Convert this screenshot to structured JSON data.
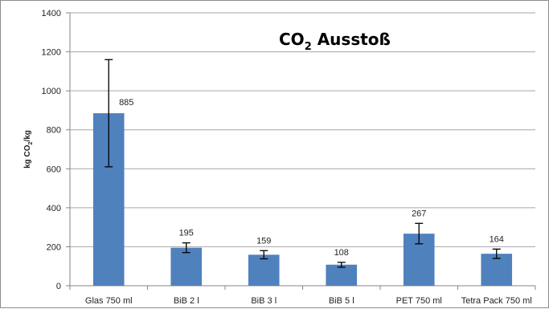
{
  "chart_data": {
    "type": "bar",
    "title": "CO",
    "title_subscript": "2",
    "title_rest": " Ausstoß",
    "ylabel": "kg CO",
    "ylabel_subscript": "2",
    "ylabel_rest": "/kg",
    "xlabel": "",
    "ylim": [
      0,
      1400
    ],
    "yticks": [
      0,
      200,
      400,
      600,
      800,
      1000,
      1200,
      1400
    ],
    "grid": true,
    "legend": "none",
    "categories": [
      "Glas 750 ml",
      "BiB 2 l",
      "BiB 3 l",
      "BiB 5 l",
      "PET 750 ml",
      "Tetra Pack 750 ml"
    ],
    "values": [
      885,
      195,
      159,
      108,
      267,
      164
    ],
    "data_labels": [
      "885",
      "195",
      "159",
      "108",
      "267",
      "164"
    ],
    "error_low": [
      610,
      170,
      138,
      95,
      215,
      140
    ],
    "error_high": [
      1160,
      220,
      180,
      120,
      320,
      188
    ],
    "bar_color": "#4f81bd",
    "grid_color": "#a6a6a6",
    "axis_color": "#868686"
  }
}
